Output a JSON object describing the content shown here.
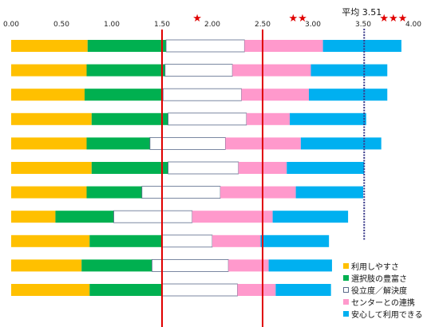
{
  "chart_data": {
    "type": "bar",
    "orientation": "horizontal",
    "stacked": true,
    "xlim": [
      0,
      4.0
    ],
    "x_ticks": [
      "0.00",
      "0.50",
      "1.00",
      "1.50",
      "2.00",
      "2.50",
      "3.00",
      "3.50",
      "4.00"
    ],
    "tick_values": [
      0,
      0.5,
      1.0,
      1.5,
      2.0,
      2.5,
      3.0,
      3.5,
      4.0
    ],
    "series": [
      {
        "name": "利用しやすさ",
        "color": "#ffc000",
        "values": [
          0.76,
          0.75,
          0.73,
          0.8,
          0.75,
          0.8,
          0.75,
          0.44,
          0.78,
          0.7,
          0.78
        ]
      },
      {
        "name": "選択肢の豊富さ",
        "color": "#00b050",
        "values": [
          0.78,
          0.78,
          0.78,
          0.76,
          0.63,
          0.76,
          0.55,
          0.58,
          0.72,
          0.7,
          0.72
        ]
      },
      {
        "name": "役立度／解決度",
        "color": "#ffffff",
        "values": [
          0.78,
          0.67,
          0.78,
          0.78,
          0.75,
          0.7,
          0.78,
          0.78,
          0.5,
          0.76,
          0.75
        ]
      },
      {
        "name": "センターとの連携",
        "color": "#ff99cc",
        "values": [
          0.78,
          0.78,
          0.67,
          0.43,
          0.75,
          0.48,
          0.75,
          0.8,
          0.48,
          0.4,
          0.38
        ]
      },
      {
        "name": "安心して利用できる",
        "color": "#00b0f0",
        "values": [
          0.78,
          0.76,
          0.78,
          0.76,
          0.8,
          0.77,
          0.67,
          0.75,
          0.68,
          0.63,
          0.55
        ]
      }
    ],
    "reference_lines": [
      {
        "value": 1.5,
        "color": "#e00000"
      },
      {
        "value": 2.5,
        "color": "#e00000"
      }
    ],
    "average": {
      "value": 3.51,
      "label": "平均 3.51",
      "color": "#3a3a8a"
    },
    "star_markers": [
      {
        "text": "★",
        "x": 1.85
      },
      {
        "text": "★★",
        "x": 2.85
      },
      {
        "text": "★★★",
        "x": 3.8
      }
    ],
    "legend_position": "bottom-right",
    "grid": false
  }
}
